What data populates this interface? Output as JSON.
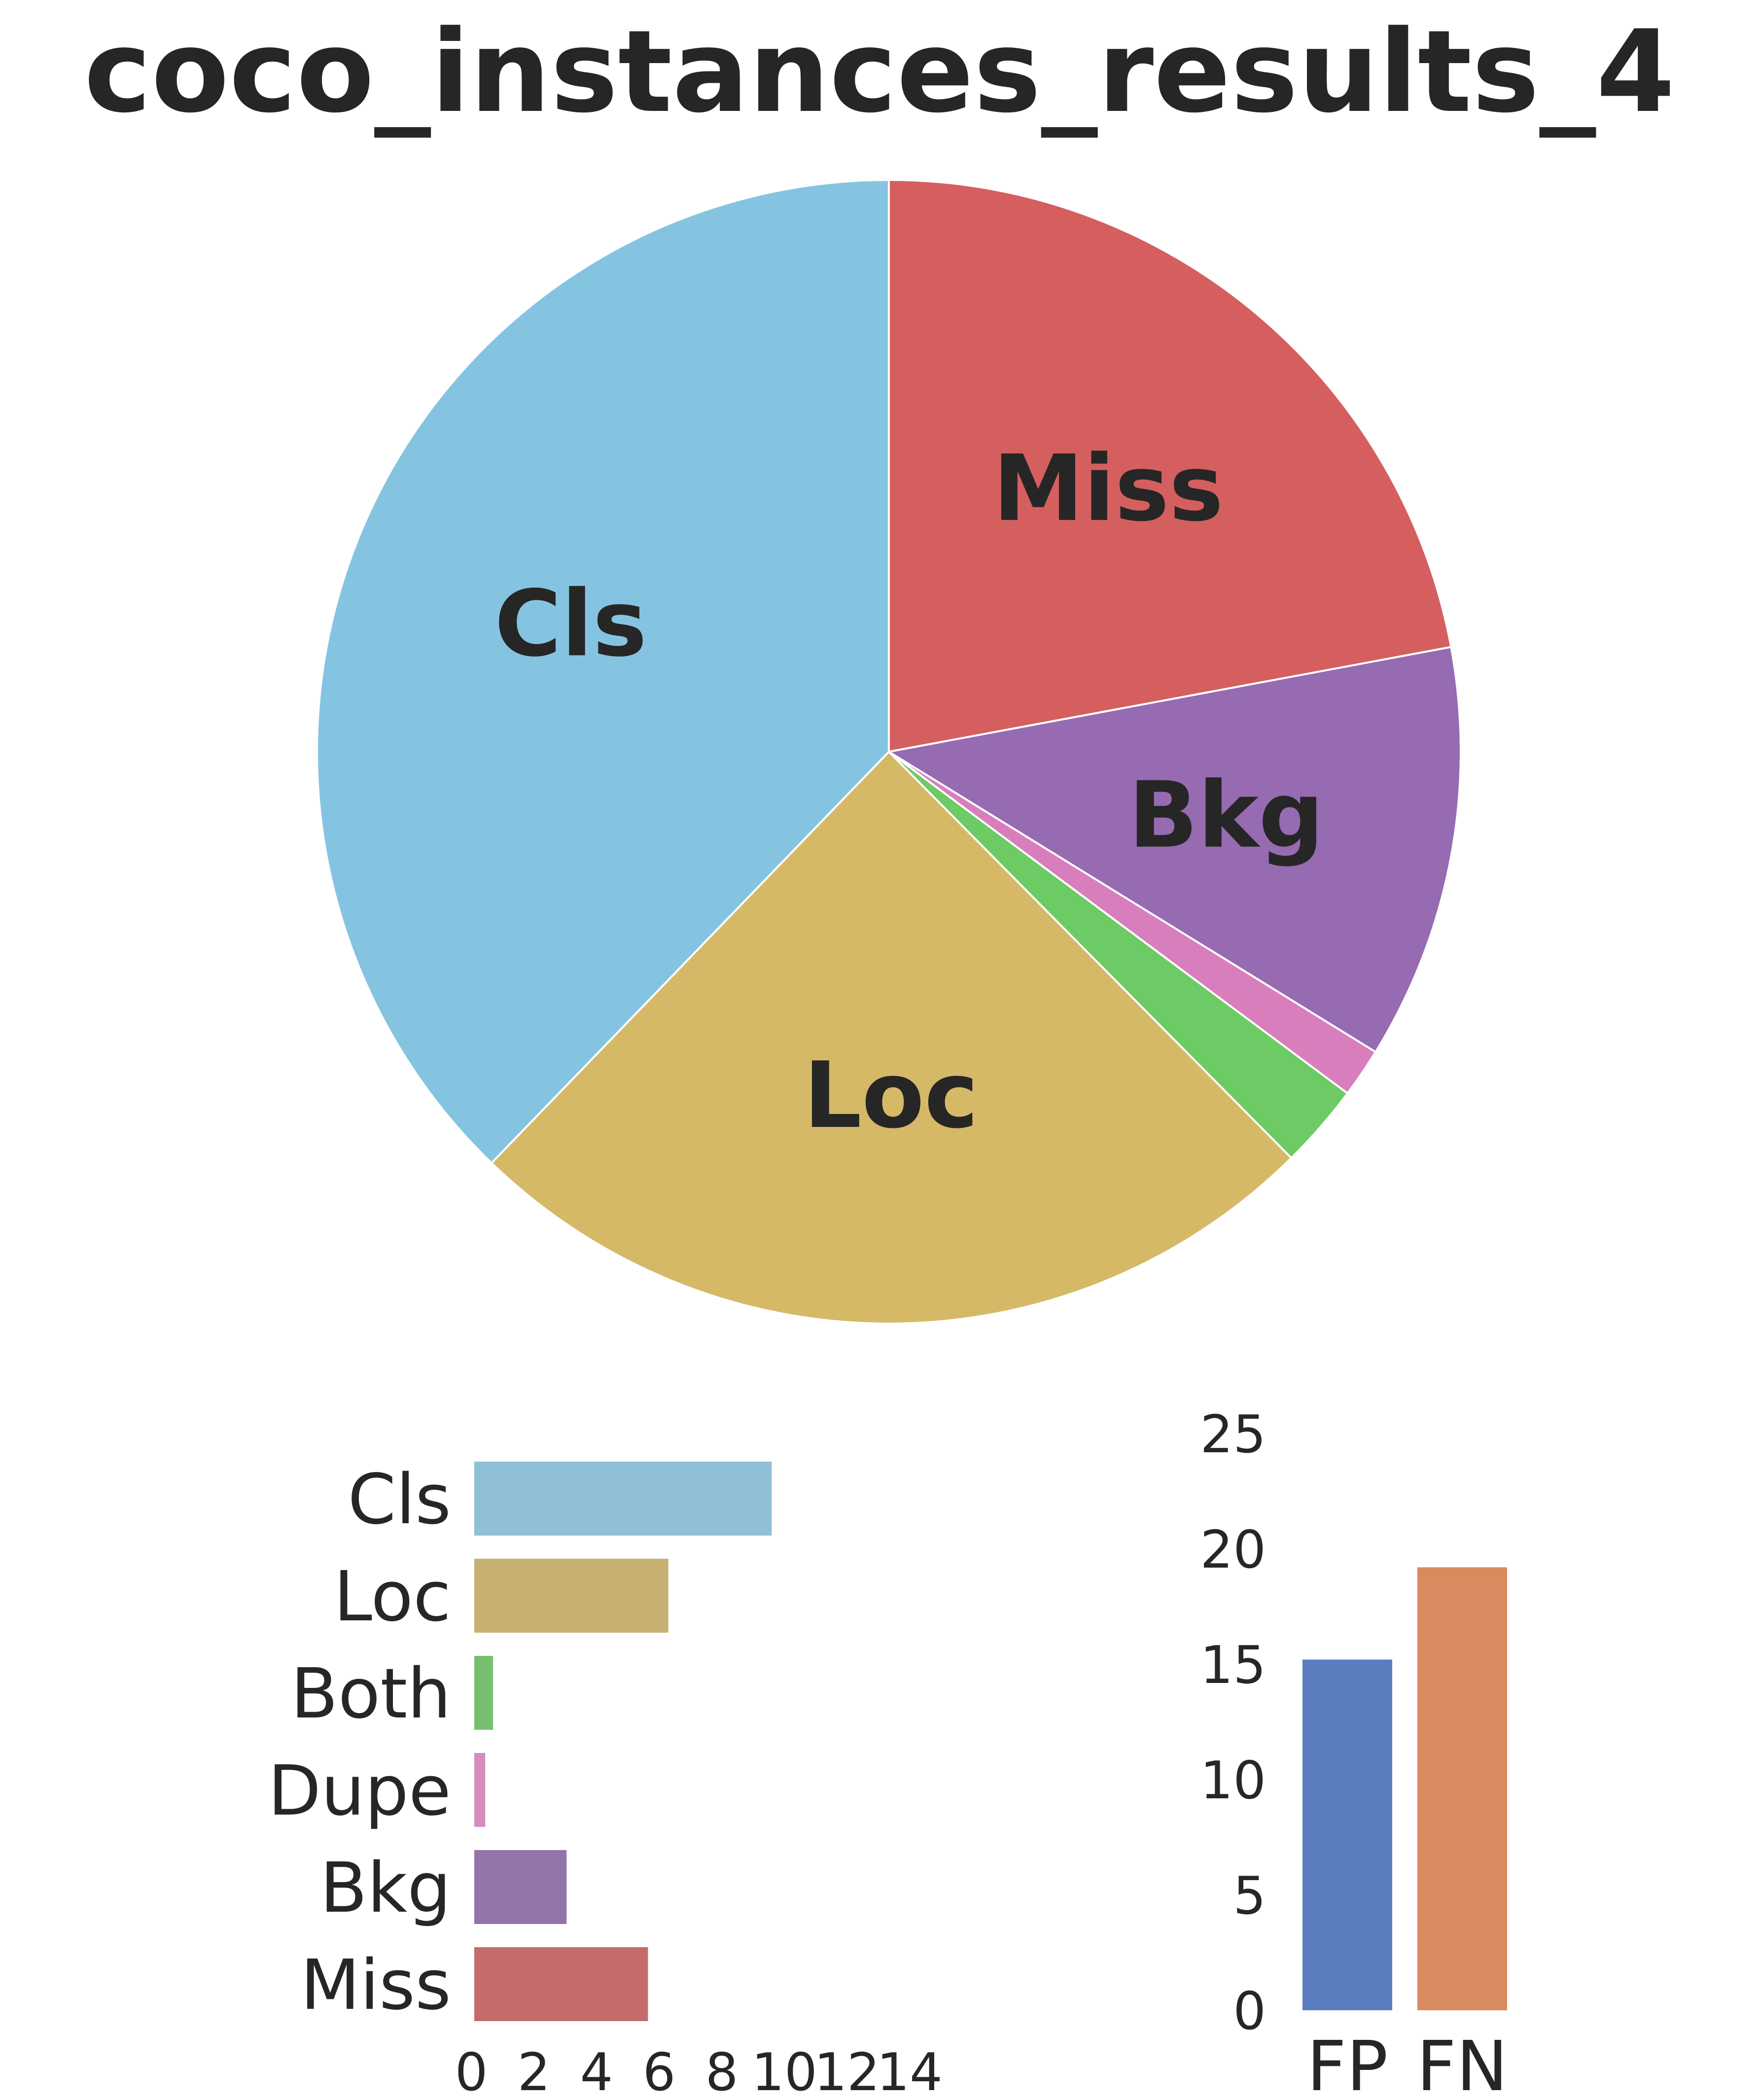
{
  "title": "coco_instances_results_4",
  "colors": {
    "Cls": "#85c4e1",
    "Loc": "#d5b966",
    "Both": "#6ccb64",
    "Dupe": "#d97ebd",
    "Bkg": "#966bb1",
    "Miss": "#d55f5f",
    "bar_Cls": "#8fc0d6",
    "bar_Loc": "#c7b170",
    "bar_Both": "#77bf6f",
    "bar_Dupe": "#d48cbd",
    "bar_Bkg": "#9274aa",
    "bar_Miss": "#c56b6b",
    "FP": "#5a7dbf",
    "FN": "#d98a5e",
    "text": "#262626"
  },
  "chart_data": [
    {
      "type": "pie",
      "slices": [
        {
          "name": "Miss",
          "value": 5.55,
          "label": "Miss"
        },
        {
          "name": "Bkg",
          "value": 2.95,
          "label": "Bkg"
        },
        {
          "name": "Dupe",
          "value": 0.35,
          "label": ""
        },
        {
          "name": "Both",
          "value": 0.6,
          "label": ""
        },
        {
          "name": "Loc",
          "value": 6.2,
          "label": "Loc"
        },
        {
          "name": "Cls",
          "value": 9.5,
          "label": "Cls"
        }
      ],
      "start_angle": "top",
      "direction": "clockwise"
    },
    {
      "type": "bar",
      "orientation": "horizontal",
      "categories": [
        "Cls",
        "Loc",
        "Both",
        "Dupe",
        "Bkg",
        "Miss"
      ],
      "values": [
        9.5,
        6.2,
        0.6,
        0.35,
        2.95,
        5.55
      ],
      "xlim": [
        0,
        14
      ],
      "xticks": [
        0,
        2,
        4,
        6,
        8,
        10,
        12,
        14
      ],
      "grid": false
    },
    {
      "type": "bar",
      "orientation": "vertical",
      "categories": [
        "FP",
        "FN"
      ],
      "values": [
        15.2,
        19.2
      ],
      "ylim": [
        0,
        25
      ],
      "yticks": [
        0,
        5,
        10,
        15,
        20,
        25
      ],
      "grid": false
    }
  ]
}
